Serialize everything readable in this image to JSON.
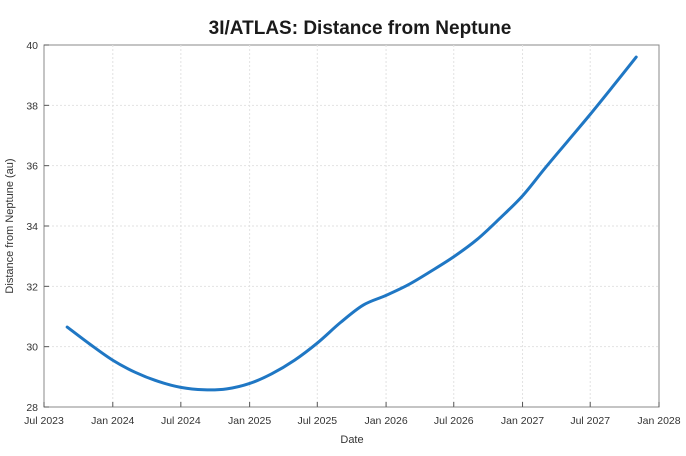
{
  "chart_data": {
    "type": "line",
    "title": "3I/ATLAS: Distance from Neptune",
    "xlabel": "Date",
    "ylabel": "Distance from Neptune (au)",
    "xlim": [
      "2023-07-01",
      "2028-01-01"
    ],
    "ylim": [
      28,
      40
    ],
    "grid": true,
    "x_ticks": [
      "2023-07-01",
      "2024-01-01",
      "2024-07-01",
      "2025-01-01",
      "2025-07-01",
      "2026-01-01",
      "2026-07-01",
      "2027-01-01",
      "2027-07-01",
      "2028-01-01"
    ],
    "x_tick_labels": [
      "Jul 2023",
      "Jan 2024",
      "Jul 2024",
      "Jan 2025",
      "Jul 2025",
      "Jan 2026",
      "Jul 2026",
      "Jan 2027",
      "Jul 2027",
      "Jan 2028"
    ],
    "y_ticks": [
      28,
      30,
      32,
      34,
      36,
      38,
      40
    ],
    "series": [
      {
        "color": "#1f77c4",
        "x": [
          "2023-09-01",
          "2023-11-01",
          "2024-01-01",
          "2024-03-01",
          "2024-05-01",
          "2024-07-01",
          "2024-09-01",
          "2024-11-01",
          "2025-01-01",
          "2025-03-01",
          "2025-05-01",
          "2025-07-01",
          "2025-09-01",
          "2025-11-01",
          "2026-01-01",
          "2026-03-01",
          "2026-05-01",
          "2026-07-01",
          "2026-09-01",
          "2026-11-01",
          "2027-01-01",
          "2027-03-01",
          "2027-05-01",
          "2027-07-01",
          "2027-09-01",
          "2027-11-01"
        ],
        "y": [
          30.65,
          30.08,
          29.55,
          29.15,
          28.85,
          28.65,
          28.57,
          28.6,
          28.78,
          29.1,
          29.55,
          30.12,
          30.8,
          31.38,
          31.7,
          32.05,
          32.5,
          32.98,
          33.55,
          34.25,
          35.0,
          35.9,
          36.8,
          37.7,
          38.65,
          39.6
        ]
      }
    ]
  }
}
